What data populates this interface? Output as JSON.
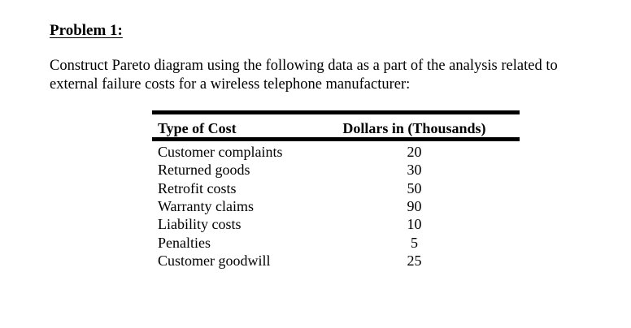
{
  "problem": {
    "heading": "Problem 1:",
    "intro_line1": "Construct Pareto diagram using the following data as a part of the analysis related to",
    "intro_line2": "external failure costs for a wireless telephone manufacturer:"
  },
  "table": {
    "headers": {
      "type": "Type of Cost",
      "dollars": "Dollars in (Thousands)"
    },
    "rows": [
      {
        "type": "Customer complaints",
        "dollars": "20"
      },
      {
        "type": "Returned goods",
        "dollars": "30"
      },
      {
        "type": "Retrofit costs",
        "dollars": "50"
      },
      {
        "type": "Warranty claims",
        "dollars": "90"
      },
      {
        "type": "Liability costs",
        "dollars": "10"
      },
      {
        "type": "Penalties",
        "dollars": "5"
      },
      {
        "type": "Customer goodwill",
        "dollars": "25"
      }
    ]
  }
}
